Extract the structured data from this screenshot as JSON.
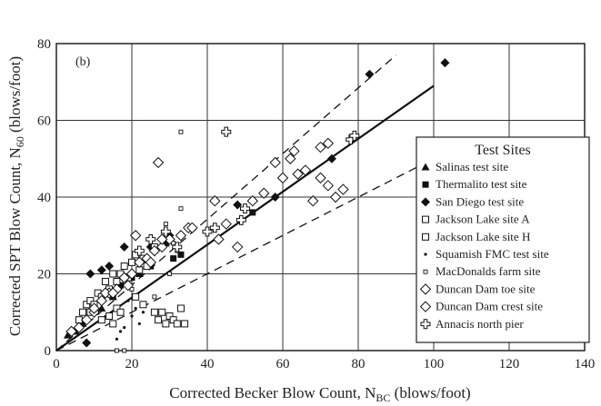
{
  "chart_data": {
    "type": "scatter",
    "panel_label": "(b)",
    "xlabel": "Corrected Becker Blow Count, N",
    "xlabel_sub": "BC",
    "xlabel_unit": " (blows/foot)",
    "ylabel": "Corrected SPT Blow Count, N",
    "ylabel_sub": "60",
    "ylabel_unit": "  (blows/foot)",
    "xlim": [
      0,
      140
    ],
    "ylim": [
      0,
      80
    ],
    "x_ticks": [
      "0",
      "20",
      "40",
      "60",
      "80",
      "100",
      "120",
      "140"
    ],
    "y_ticks": [
      "0",
      "20",
      "40",
      "60",
      "80"
    ],
    "grid": true,
    "legend_placement": "right",
    "legend": {
      "title": "Test Sites",
      "items": [
        {
          "label": "Salinas test site",
          "marker": "triangle-filled"
        },
        {
          "label": "Thermalito test site",
          "marker": "square-filled"
        },
        {
          "label": "San Diego test site",
          "marker": "diamond-filled"
        },
        {
          "label": "Jackson Lake site A",
          "marker": "square-open"
        },
        {
          "label": "Jackson Lake site H",
          "marker": "square-open"
        },
        {
          "label": "Squamish FMC test site",
          "marker": "dot"
        },
        {
          "label": "MacDonalds farm site",
          "marker": "small-square"
        },
        {
          "label": "Duncan Dam toe site",
          "marker": "diamond-open"
        },
        {
          "label": "Duncan Dam crest site",
          "marker": "diamond-open"
        },
        {
          "label": "Annacis north pier",
          "marker": "cross-open"
        }
      ]
    },
    "trend_lines": [
      {
        "style": "solid",
        "x": [
          0,
          100
        ],
        "y": [
          0,
          69
        ]
      },
      {
        "style": "dashed",
        "x": [
          0,
          90
        ],
        "y": [
          0,
          77
        ]
      },
      {
        "style": "dashed",
        "x": [
          0,
          102
        ],
        "y": [
          0,
          51
        ]
      }
    ],
    "series": [
      {
        "marker": "triangle-filled",
        "points": [
          [
            3,
            4
          ],
          [
            5,
            5
          ],
          [
            7,
            7
          ],
          [
            15,
            14
          ],
          [
            22,
            20
          ],
          [
            29,
            28
          ],
          [
            12,
            11
          ]
        ]
      },
      {
        "marker": "square-filled",
        "points": [
          [
            17,
            17
          ],
          [
            20,
            19
          ],
          [
            22,
            20
          ],
          [
            25,
            22
          ],
          [
            31,
            24
          ],
          [
            33,
            25
          ],
          [
            52,
            36
          ],
          [
            15,
            14
          ]
        ]
      },
      {
        "marker": "diamond-filled",
        "points": [
          [
            8,
            2
          ],
          [
            9,
            20
          ],
          [
            12,
            21
          ],
          [
            14,
            22
          ],
          [
            18,
            27
          ],
          [
            25,
            27
          ],
          [
            30,
            30
          ],
          [
            48,
            38
          ],
          [
            58,
            40
          ],
          [
            73,
            50
          ],
          [
            83,
            72
          ],
          [
            103,
            75
          ]
        ]
      },
      {
        "marker": "square-open",
        "points": [
          [
            6,
            8
          ],
          [
            7,
            10
          ],
          [
            8,
            12
          ],
          [
            9,
            13
          ],
          [
            10,
            12
          ],
          [
            11,
            15
          ],
          [
            12,
            14
          ],
          [
            13,
            18
          ],
          [
            14,
            16
          ],
          [
            15,
            20
          ],
          [
            16,
            18
          ],
          [
            17,
            20
          ],
          [
            18,
            22
          ],
          [
            19,
            19
          ],
          [
            20,
            23
          ],
          [
            21,
            25
          ],
          [
            22,
            21
          ],
          [
            23,
            24
          ],
          [
            24,
            22
          ],
          [
            26,
            27
          ],
          [
            9,
            10
          ],
          [
            12,
            8
          ]
        ]
      },
      {
        "marker": "square-open",
        "points": [
          [
            14,
            9
          ],
          [
            15,
            7
          ],
          [
            16,
            11
          ],
          [
            17,
            10
          ],
          [
            26,
            10
          ],
          [
            27,
            8
          ],
          [
            28,
            10
          ],
          [
            29,
            7
          ],
          [
            30,
            9
          ],
          [
            31,
            8
          ],
          [
            32,
            7
          ],
          [
            33,
            11
          ],
          [
            34,
            7
          ],
          [
            23,
            12
          ],
          [
            21,
            14
          ]
        ]
      },
      {
        "marker": "dot",
        "points": [
          [
            18,
            6
          ],
          [
            17,
            5
          ],
          [
            20,
            9
          ],
          [
            21,
            11
          ],
          [
            23,
            10
          ],
          [
            19,
            13
          ],
          [
            22,
            7
          ],
          [
            16,
            3
          ]
        ]
      },
      {
        "marker": "small-square",
        "points": [
          [
            16,
            0
          ],
          [
            18,
            0
          ],
          [
            26,
            14
          ],
          [
            30,
            20
          ],
          [
            32,
            26
          ],
          [
            33,
            37
          ],
          [
            33,
            57
          ],
          [
            29,
            33
          ],
          [
            20,
            16
          ],
          [
            31,
            28
          ]
        ]
      },
      {
        "marker": "diamond-open",
        "points": [
          [
            4,
            5
          ],
          [
            6,
            6
          ],
          [
            8,
            8
          ],
          [
            10,
            10
          ],
          [
            12,
            13
          ],
          [
            14,
            15
          ],
          [
            16,
            16
          ],
          [
            18,
            19
          ],
          [
            20,
            20
          ],
          [
            22,
            23
          ],
          [
            24,
            24
          ],
          [
            26,
            26
          ],
          [
            28,
            27
          ],
          [
            30,
            29
          ],
          [
            33,
            30
          ],
          [
            35,
            32
          ],
          [
            42,
            39
          ],
          [
            48,
            27
          ],
          [
            55,
            41
          ],
          [
            60,
            45
          ],
          [
            62,
            50
          ],
          [
            63,
            52
          ],
          [
            66,
            47
          ],
          [
            70,
            45
          ],
          [
            68,
            39
          ],
          [
            72,
            43
          ],
          [
            76,
            42
          ],
          [
            70,
            53
          ],
          [
            72,
            54
          ],
          [
            58,
            49
          ],
          [
            27,
            49
          ],
          [
            43,
            29
          ],
          [
            45,
            33
          ],
          [
            13,
            15
          ],
          [
            21,
            30
          ],
          [
            25,
            23
          ]
        ]
      },
      {
        "marker": "diamond-open",
        "points": [
          [
            10,
            11
          ],
          [
            15,
            15
          ],
          [
            19,
            17
          ],
          [
            28,
            29
          ],
          [
            36,
            32
          ],
          [
            52,
            39
          ],
          [
            64,
            46
          ],
          [
            74,
            40
          ]
        ]
      },
      {
        "marker": "cross-open",
        "points": [
          [
            25,
            29
          ],
          [
            29,
            31
          ],
          [
            40,
            31
          ],
          [
            42,
            32
          ],
          [
            45,
            57
          ],
          [
            49,
            34
          ],
          [
            50,
            37
          ],
          [
            78,
            55
          ],
          [
            79,
            56
          ],
          [
            22,
            26
          ],
          [
            32,
            27
          ]
        ]
      }
    ]
  }
}
